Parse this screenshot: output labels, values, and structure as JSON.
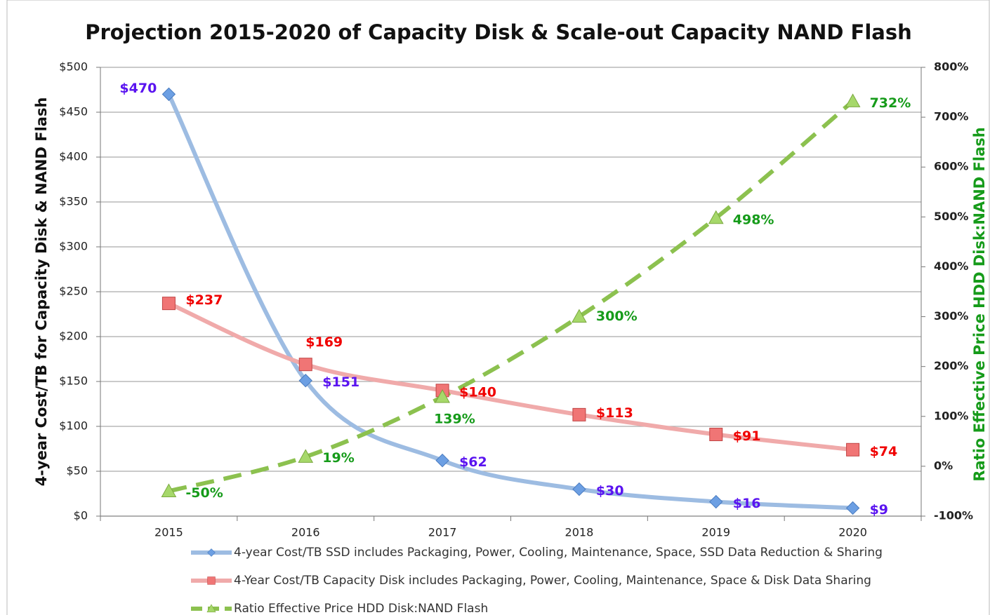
{
  "chart_data": {
    "type": "line",
    "title": "Projection 2015-2020 of Capacity Disk & Scale-out Capacity NAND Flash",
    "y_label": "4-year Cost/TB for Capacity Disk & NAND Flash",
    "y2_label": "Ratio Effective Price HDD Disk:NAND Flash",
    "y2_label_color": "#169b1a",
    "categories": [
      "2015",
      "2016",
      "2017",
      "2018",
      "2019",
      "2020"
    ],
    "ylim": [
      0,
      500
    ],
    "yticks": [
      {
        "value": 0,
        "label": "$0"
      },
      {
        "value": 50,
        "label": "$50"
      },
      {
        "value": 100,
        "label": "$100"
      },
      {
        "value": 150,
        "label": "$150"
      },
      {
        "value": 200,
        "label": "$200"
      },
      {
        "value": 250,
        "label": "$250"
      },
      {
        "value": 300,
        "label": "$300"
      },
      {
        "value": 350,
        "label": "$350"
      },
      {
        "value": 400,
        "label": "$400"
      },
      {
        "value": 450,
        "label": "$450"
      },
      {
        "value": 500,
        "label": "$500"
      }
    ],
    "y2lim": [
      -100,
      800
    ],
    "y2ticks": [
      {
        "value": -100,
        "label": "-100%"
      },
      {
        "value": 0,
        "label": "0%"
      },
      {
        "value": 100,
        "label": "100%"
      },
      {
        "value": 200,
        "label": "200%"
      },
      {
        "value": 300,
        "label": "300%"
      },
      {
        "value": 400,
        "label": "400%"
      },
      {
        "value": 500,
        "label": "500%"
      },
      {
        "value": 600,
        "label": "600%"
      },
      {
        "value": 700,
        "label": "700%"
      },
      {
        "value": 800,
        "label": "800%"
      }
    ],
    "grid": true,
    "legend": "bottom",
    "series": [
      {
        "name": "4-year Cost/TB SSD includes Packaging, Power, Cooling, Maintenance, Space, SSD Data Reduction & Sharing",
        "color": "#9dbce2",
        "marker": "diamond",
        "marker_color": "#6c9fe3",
        "label_color": "#5a14f0",
        "values": [
          470,
          151,
          62,
          30,
          16,
          9
        ],
        "value_labels": [
          "$470",
          "$151",
          "$62",
          "$30",
          "$16",
          "$9"
        ]
      },
      {
        "name": "4-Year Cost/TB Capacity Disk includes Packaging, Power, Cooling, Maintenance, Space & Disk Data Sharing",
        "color": "#f0aaaa",
        "marker": "square",
        "marker_color": "#f07575",
        "label_color": "#f00000",
        "values": [
          237,
          169,
          140,
          113,
          91,
          74
        ],
        "value_labels": [
          "$237",
          "$169",
          "$140",
          "$113",
          "$91",
          "$74"
        ]
      },
      {
        "name": "Ratio Effective Price HDD Disk:NAND Flash",
        "color": "#8cc14f",
        "marker": "triangle",
        "marker_color": "#a6d86a",
        "label_color": "#169b1a",
        "dashed": true,
        "axis": "y2",
        "values": [
          -50,
          19,
          139,
          300,
          498,
          732
        ],
        "value_labels": [
          "-50%",
          "19%",
          "139%",
          "300%",
          "498%",
          "732%"
        ]
      }
    ]
  }
}
